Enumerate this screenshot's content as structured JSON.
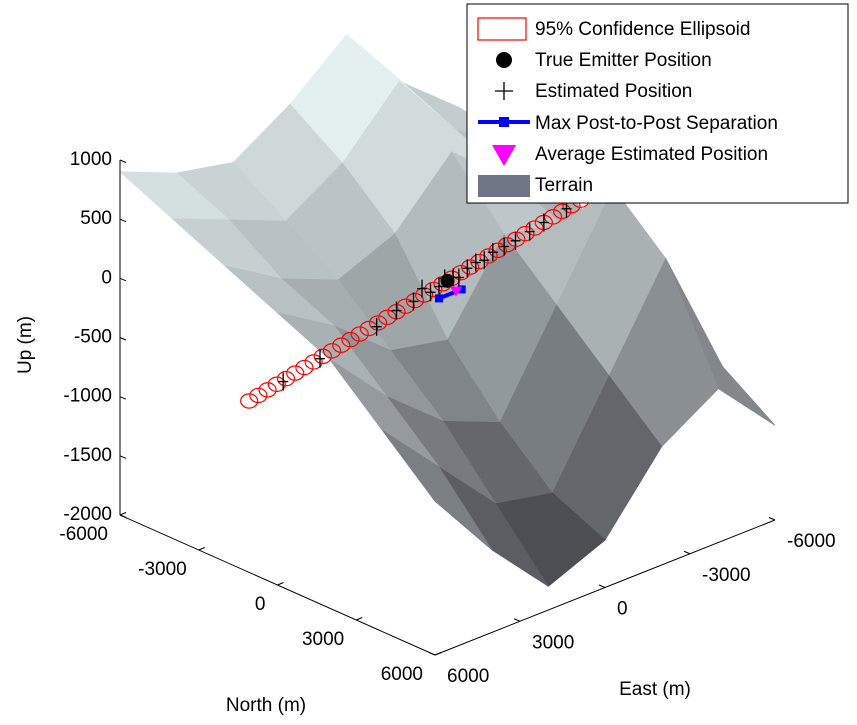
{
  "chart_data": {
    "type": "surface3d",
    "zlabel": "Up (m)",
    "nlabel": "North (m)",
    "elabel": "East (m)",
    "zlim": [
      -2000,
      1000
    ],
    "zticks": [
      -2000,
      -1500,
      -1000,
      -500,
      0,
      500,
      1000
    ],
    "nlim": [
      -6000,
      6000
    ],
    "nticks": [
      -6000,
      -3000,
      0,
      3000,
      6000
    ],
    "elim": [
      -6000,
      6000
    ],
    "eticks": [
      -6000,
      -3000,
      0,
      3000,
      6000
    ],
    "ellipsoid": {
      "name": "95% Confidence Ellipsoid",
      "color": "#ff0000",
      "from": {
        "east": 7000,
        "north": 0,
        "up": -350
      },
      "to": {
        "east": -6000,
        "north": 0,
        "up": 300
      },
      "radius": 60
    },
    "emitter": {
      "name": "True Emitter Position",
      "color": "#000000",
      "east": 0,
      "north": 0,
      "up": 0
    },
    "estimates": {
      "name": "Estimated Position",
      "color": "#000000",
      "east": [
        2500,
        1800,
        1200,
        900,
        600,
        300,
        100,
        -200,
        -400,
        -700,
        -1000,
        -1300,
        -1600,
        -2000,
        -2400,
        -2900,
        -3400,
        4500,
        5800,
        -4200
      ],
      "north": [
        0,
        0,
        0,
        0,
        0,
        0,
        0,
        0,
        0,
        0,
        0,
        0,
        0,
        0,
        0,
        0,
        0,
        0,
        0,
        0
      ],
      "up": [
        -150,
        -80,
        -60,
        20,
        -40,
        -20,
        30,
        10,
        -10,
        40,
        60,
        50,
        90,
        100,
        110,
        140,
        170,
        -230,
        -300,
        210
      ]
    },
    "separation": {
      "name": "Max Post-to-Post Separation",
      "color": "#0000ff",
      "east": [
        300,
        -500
      ],
      "north": [
        0,
        0
      ],
      "up": [
        -120,
        -120
      ]
    },
    "average": {
      "name": "Average Estimated Position",
      "color": "#ff00ff",
      "east": -300,
      "north": 0,
      "up": -120
    },
    "terrain": {
      "name": "Terrain",
      "color": "#6f7585",
      "north": [
        -6000,
        -4000,
        -2000,
        0,
        2000,
        4000,
        6000
      ],
      "east": [
        -6000,
        -4000,
        -2000,
        0,
        2000,
        4000,
        6000
      ],
      "up": [
        [
          300,
          700,
          1300,
          900,
          600,
          700,
          900
        ],
        [
          200,
          500,
          1100,
          600,
          300,
          500,
          700
        ],
        [
          0,
          300,
          700,
          200,
          0,
          200,
          500
        ],
        [
          -300,
          100,
          200,
          -500,
          -400,
          0,
          300
        ],
        [
          -600,
          600,
          -200,
          -1000,
          -800,
          -400,
          100
        ],
        [
          -900,
          200,
          -600,
          -1400,
          -1300,
          -800,
          -300
        ],
        [
          -1200,
          -700,
          -1000,
          -1600,
          -1800,
          -1300,
          -700
        ]
      ]
    }
  }
}
